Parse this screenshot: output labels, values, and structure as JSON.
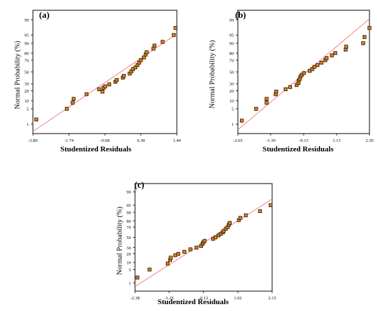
{
  "chart_data": [
    {
      "type": "scatter",
      "panel_label": "(a)",
      "xlabel": "Studentized Residuals",
      "ylabel": "Normal Probability (%)",
      "xticks": [
        "-2.80",
        "-1.74",
        "-0.68",
        "0.38",
        "1.44"
      ],
      "xlim": [
        -2.8,
        1.44
      ],
      "yticks": [
        1,
        5,
        10,
        20,
        30,
        50,
        70,
        80,
        90,
        95,
        99
      ],
      "ylim_pct": [
        0.3,
        99.7
      ],
      "fit_line": {
        "x": [
          -2.8,
          1.44
        ],
        "y_pct": [
          0.4,
          95.5
        ]
      },
      "points": [
        {
          "x": -2.7,
          "y": 1.7
        },
        {
          "x": -1.8,
          "y": 5
        },
        {
          "x": -1.63,
          "y": 8.5
        },
        {
          "x": -1.6,
          "y": 11.5
        },
        {
          "x": -1.22,
          "y": 16
        },
        {
          "x": -0.85,
          "y": 22
        },
        {
          "x": -0.75,
          "y": 19
        },
        {
          "x": -0.72,
          "y": 24
        },
        {
          "x": -0.67,
          "y": 26
        },
        {
          "x": -0.55,
          "y": 29
        },
        {
          "x": -0.37,
          "y": 33
        },
        {
          "x": -0.33,
          "y": 36
        },
        {
          "x": -0.15,
          "y": 40
        },
        {
          "x": -0.12,
          "y": 43
        },
        {
          "x": 0.05,
          "y": 47
        },
        {
          "x": 0.1,
          "y": 51
        },
        {
          "x": 0.15,
          "y": 55
        },
        {
          "x": 0.22,
          "y": 58
        },
        {
          "x": 0.28,
          "y": 62
        },
        {
          "x": 0.33,
          "y": 66
        },
        {
          "x": 0.38,
          "y": 70
        },
        {
          "x": 0.47,
          "y": 74
        },
        {
          "x": 0.52,
          "y": 78
        },
        {
          "x": 0.55,
          "y": 81
        },
        {
          "x": 0.75,
          "y": 85
        },
        {
          "x": 0.78,
          "y": 88
        },
        {
          "x": 1.02,
          "y": 91
        },
        {
          "x": 1.35,
          "y": 95
        },
        {
          "x": 1.4,
          "y": 97.5
        }
      ]
    },
    {
      "type": "scatter",
      "panel_label": "(b)",
      "xlabel": "Studentized Residuals",
      "ylabel": "Normal Probability (%)",
      "xticks": [
        "-2.65",
        "-1.39",
        "-0.13",
        "1.13",
        "2.39"
      ],
      "xlim": [
        -2.65,
        2.39
      ],
      "yticks": [
        1,
        5,
        10,
        20,
        30,
        50,
        70,
        80,
        90,
        95,
        99
      ],
      "ylim_pct": [
        0.3,
        99.7
      ],
      "fit_line": {
        "x": [
          -2.65,
          2.39
        ],
        "y_pct": [
          0.5,
          99.1
        ]
      },
      "points": [
        {
          "x": -2.5,
          "y": 1.5
        },
        {
          "x": -1.95,
          "y": 5
        },
        {
          "x": -1.55,
          "y": 8.5
        },
        {
          "x": -1.55,
          "y": 11.5
        },
        {
          "x": -1.2,
          "y": 16
        },
        {
          "x": -1.18,
          "y": 19
        },
        {
          "x": -0.82,
          "y": 22
        },
        {
          "x": -0.65,
          "y": 25
        },
        {
          "x": -0.4,
          "y": 28
        },
        {
          "x": -0.33,
          "y": 31
        },
        {
          "x": -0.32,
          "y": 35
        },
        {
          "x": -0.28,
          "y": 38
        },
        {
          "x": -0.25,
          "y": 42
        },
        {
          "x": -0.2,
          "y": 45
        },
        {
          "x": -0.12,
          "y": 48
        },
        {
          "x": 0.1,
          "y": 52
        },
        {
          "x": 0.2,
          "y": 55
        },
        {
          "x": 0.28,
          "y": 59
        },
        {
          "x": 0.4,
          "y": 62
        },
        {
          "x": 0.55,
          "y": 66
        },
        {
          "x": 0.7,
          "y": 70
        },
        {
          "x": 0.75,
          "y": 73
        },
        {
          "x": 0.95,
          "y": 77
        },
        {
          "x": 1.08,
          "y": 80
        },
        {
          "x": 1.48,
          "y": 84
        },
        {
          "x": 1.5,
          "y": 87
        },
        {
          "x": 2.15,
          "y": 90
        },
        {
          "x": 2.2,
          "y": 94
        },
        {
          "x": 2.39,
          "y": 97.5
        }
      ]
    },
    {
      "type": "scatter",
      "panel_label": "(c)",
      "xlabel": "Studentized Residuals",
      "ylabel": "Normal Probability (%)",
      "xticks": [
        "-2.38",
        "-1.25",
        "-0.12",
        "1.02",
        "2.15"
      ],
      "xlim": [
        -2.38,
        2.15
      ],
      "yticks": [
        1,
        5,
        10,
        20,
        30,
        50,
        70,
        80,
        90,
        95,
        99
      ],
      "ylim_pct": [
        0.3,
        99.7
      ],
      "fit_line": {
        "x": [
          -2.38,
          2.15
        ],
        "y_pct": [
          0.6,
          97.5
        ]
      },
      "points": [
        {
          "x": -2.3,
          "y": 2
        },
        {
          "x": -1.9,
          "y": 5
        },
        {
          "x": -1.3,
          "y": 9
        },
        {
          "x": -1.22,
          "y": 12.5
        },
        {
          "x": -1.2,
          "y": 15
        },
        {
          "x": -1.05,
          "y": 18
        },
        {
          "x": -0.95,
          "y": 20
        },
        {
          "x": -0.75,
          "y": 23
        },
        {
          "x": -0.55,
          "y": 27
        },
        {
          "x": -0.35,
          "y": 30
        },
        {
          "x": -0.2,
          "y": 33
        },
        {
          "x": -0.15,
          "y": 37
        },
        {
          "x": -0.12,
          "y": 40
        },
        {
          "x": -0.08,
          "y": 43
        },
        {
          "x": 0.2,
          "y": 47
        },
        {
          "x": 0.28,
          "y": 50
        },
        {
          "x": 0.38,
          "y": 54
        },
        {
          "x": 0.45,
          "y": 57
        },
        {
          "x": 0.52,
          "y": 60
        },
        {
          "x": 0.55,
          "y": 63
        },
        {
          "x": 0.62,
          "y": 67
        },
        {
          "x": 0.68,
          "y": 70
        },
        {
          "x": 0.72,
          "y": 74
        },
        {
          "x": 0.75,
          "y": 77
        },
        {
          "x": 1.05,
          "y": 81
        },
        {
          "x": 1.1,
          "y": 84
        },
        {
          "x": 1.28,
          "y": 87
        },
        {
          "x": 1.75,
          "y": 91
        },
        {
          "x": 2.1,
          "y": 95
        }
      ]
    }
  ]
}
